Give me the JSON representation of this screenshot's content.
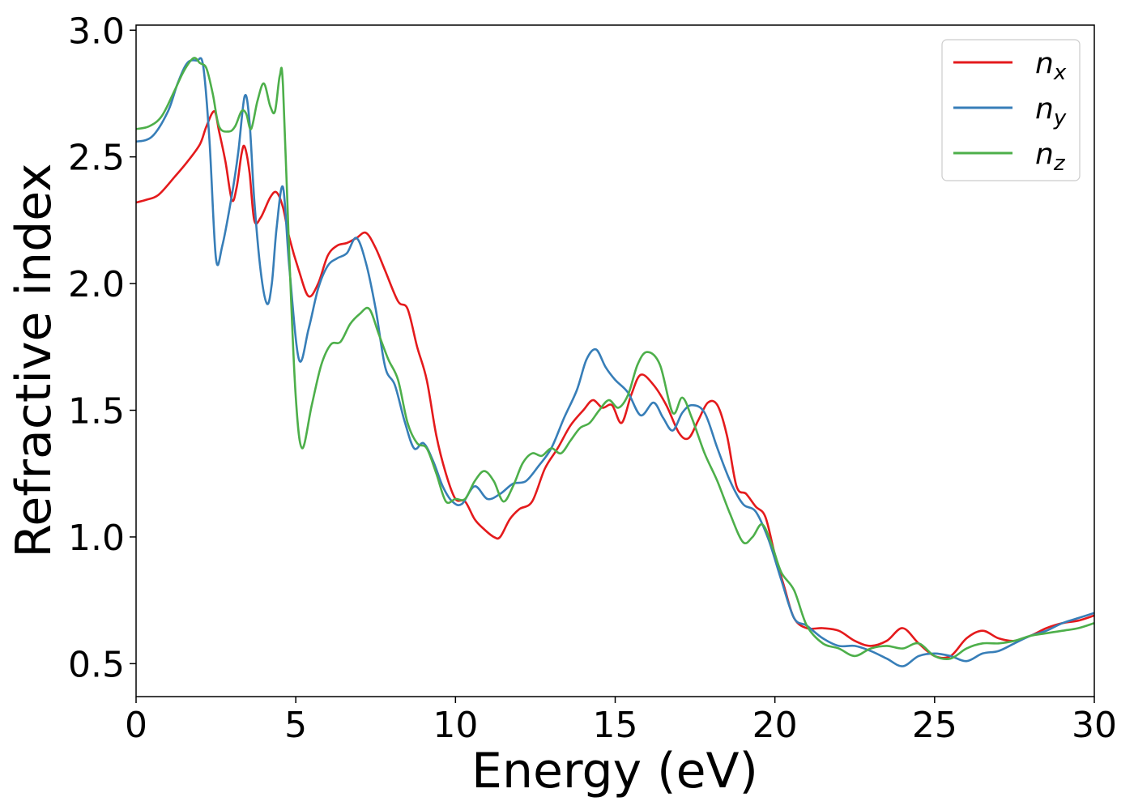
{
  "chart_data": {
    "type": "line",
    "title": "",
    "xlabel": "Energy (eV)",
    "ylabel": "Refractive index",
    "xlim": [
      0,
      30
    ],
    "ylim": [
      0.37,
      3.02
    ],
    "xticks": [
      0,
      5,
      10,
      15,
      20,
      25,
      30
    ],
    "xtick_labels": [
      "0",
      "5",
      "10",
      "15",
      "20",
      "25",
      "30"
    ],
    "yticks": [
      0.5,
      1.0,
      1.5,
      2.0,
      2.5,
      3.0
    ],
    "ytick_labels": [
      "0.5",
      "1.0",
      "1.5",
      "2.0",
      "2.5",
      "3.0"
    ],
    "grid": false,
    "legend_position": "top-right",
    "series": [
      {
        "name": "n",
        "subscript": "x",
        "color": "#e41a1c",
        "x": [
          0,
          0.3,
          0.7,
          1.2,
          1.6,
          2.0,
          2.2,
          2.45,
          2.6,
          2.8,
          3.0,
          3.15,
          3.3,
          3.4,
          3.55,
          3.7,
          3.9,
          4.2,
          4.4,
          4.6,
          4.8,
          5.1,
          5.4,
          5.7,
          6.0,
          6.3,
          6.6,
          6.9,
          7.2,
          7.5,
          7.8,
          8.2,
          8.5,
          8.8,
          9.1,
          9.4,
          9.7,
          10.0,
          10.3,
          10.6,
          10.9,
          11.2,
          11.4,
          11.7,
          12.0,
          12.4,
          12.8,
          13.2,
          13.6,
          14.0,
          14.3,
          14.6,
          14.9,
          15.2,
          15.5,
          15.8,
          16.2,
          16.6,
          17.0,
          17.3,
          17.6,
          17.9,
          18.2,
          18.5,
          18.8,
          19.1,
          19.4,
          19.7,
          20.0,
          20.3,
          20.6,
          21.0,
          21.5,
          22.0,
          22.5,
          23.0,
          23.5,
          24.0,
          24.5,
          25.0,
          25.5,
          26.0,
          26.5,
          27.0,
          27.5,
          28.0,
          28.5,
          29.0,
          29.5,
          30.0
        ],
        "y": [
          2.32,
          2.33,
          2.35,
          2.42,
          2.48,
          2.55,
          2.62,
          2.68,
          2.6,
          2.48,
          2.33,
          2.38,
          2.51,
          2.54,
          2.44,
          2.25,
          2.26,
          2.34,
          2.36,
          2.3,
          2.18,
          2.05,
          1.95,
          2.0,
          2.11,
          2.15,
          2.16,
          2.18,
          2.2,
          2.14,
          2.05,
          1.93,
          1.9,
          1.75,
          1.62,
          1.4,
          1.25,
          1.15,
          1.14,
          1.07,
          1.03,
          1.0,
          1.0,
          1.07,
          1.11,
          1.14,
          1.27,
          1.35,
          1.44,
          1.5,
          1.54,
          1.51,
          1.52,
          1.45,
          1.56,
          1.64,
          1.6,
          1.52,
          1.41,
          1.39,
          1.46,
          1.53,
          1.52,
          1.4,
          1.2,
          1.17,
          1.12,
          1.08,
          0.93,
          0.8,
          0.68,
          0.64,
          0.64,
          0.63,
          0.59,
          0.57,
          0.59,
          0.64,
          0.58,
          0.53,
          0.53,
          0.6,
          0.63,
          0.6,
          0.59,
          0.61,
          0.64,
          0.66,
          0.67,
          0.69
        ]
      },
      {
        "name": "n",
        "subscript": "y",
        "color": "#377eb8",
        "x": [
          0,
          0.5,
          1.0,
          1.3,
          1.6,
          1.9,
          2.1,
          2.3,
          2.5,
          2.7,
          3.0,
          3.2,
          3.4,
          3.55,
          3.7,
          3.9,
          4.1,
          4.25,
          4.4,
          4.6,
          4.8,
          5.1,
          5.4,
          5.7,
          6.0,
          6.3,
          6.6,
          6.9,
          7.2,
          7.5,
          7.8,
          8.1,
          8.4,
          8.7,
          9.0,
          9.3,
          9.6,
          9.9,
          10.2,
          10.6,
          11.0,
          11.4,
          11.8,
          12.2,
          12.6,
          13.0,
          13.4,
          13.8,
          14.1,
          14.4,
          14.7,
          15.0,
          15.4,
          15.8,
          16.2,
          16.5,
          16.8,
          17.1,
          17.4,
          17.8,
          18.2,
          18.6,
          19.0,
          19.4,
          19.8,
          20.2,
          20.6,
          21.0,
          21.5,
          22.0,
          22.5,
          23.0,
          23.5,
          24.0,
          24.5,
          25.0,
          25.5,
          26.0,
          26.5,
          27.0,
          27.5,
          28.0,
          28.5,
          29.0,
          29.5,
          30.0
        ],
        "y": [
          2.56,
          2.58,
          2.68,
          2.79,
          2.87,
          2.88,
          2.86,
          2.56,
          2.1,
          2.15,
          2.35,
          2.52,
          2.74,
          2.64,
          2.33,
          2.05,
          1.92,
          2.0,
          2.22,
          2.38,
          2.06,
          1.7,
          1.82,
          1.98,
          2.07,
          2.1,
          2.12,
          2.18,
          2.08,
          1.9,
          1.67,
          1.6,
          1.46,
          1.35,
          1.37,
          1.3,
          1.2,
          1.14,
          1.13,
          1.2,
          1.15,
          1.17,
          1.21,
          1.22,
          1.28,
          1.35,
          1.47,
          1.58,
          1.7,
          1.74,
          1.67,
          1.62,
          1.57,
          1.48,
          1.53,
          1.47,
          1.42,
          1.49,
          1.52,
          1.49,
          1.35,
          1.22,
          1.13,
          1.1,
          0.99,
          0.83,
          0.68,
          0.65,
          0.6,
          0.57,
          0.57,
          0.55,
          0.52,
          0.49,
          0.53,
          0.54,
          0.53,
          0.51,
          0.54,
          0.55,
          0.58,
          0.61,
          0.63,
          0.66,
          0.68,
          0.7
        ]
      },
      {
        "name": "n",
        "subscript": "z",
        "color": "#4daf4a",
        "x": [
          0,
          0.4,
          0.8,
          1.2,
          1.5,
          1.8,
          2.0,
          2.2,
          2.4,
          2.6,
          2.9,
          3.1,
          3.3,
          3.45,
          3.6,
          3.8,
          4.0,
          4.2,
          4.35,
          4.5,
          4.6,
          4.8,
          5.0,
          5.2,
          5.5,
          5.8,
          6.1,
          6.4,
          6.7,
          7.0,
          7.3,
          7.6,
          7.9,
          8.2,
          8.5,
          8.8,
          9.1,
          9.4,
          9.7,
          10.0,
          10.3,
          10.6,
          10.9,
          11.2,
          11.5,
          11.8,
          12.1,
          12.4,
          12.7,
          13.0,
          13.3,
          13.6,
          13.9,
          14.2,
          14.5,
          14.8,
          15.1,
          15.4,
          15.7,
          16.0,
          16.4,
          16.8,
          17.1,
          17.4,
          17.8,
          18.2,
          18.6,
          19.0,
          19.3,
          19.6,
          19.9,
          20.2,
          20.6,
          21.0,
          21.5,
          22.0,
          22.5,
          23.0,
          23.5,
          24.0,
          24.5,
          25.0,
          25.5,
          26.0,
          26.5,
          27.0,
          27.5,
          28.0,
          28.5,
          29.0,
          29.5,
          30.0
        ],
        "y": [
          2.61,
          2.62,
          2.66,
          2.76,
          2.84,
          2.89,
          2.87,
          2.85,
          2.75,
          2.62,
          2.6,
          2.62,
          2.68,
          2.67,
          2.61,
          2.72,
          2.79,
          2.7,
          2.68,
          2.82,
          2.78,
          2.1,
          1.55,
          1.35,
          1.52,
          1.68,
          1.76,
          1.77,
          1.84,
          1.88,
          1.9,
          1.8,
          1.7,
          1.62,
          1.45,
          1.37,
          1.35,
          1.25,
          1.14,
          1.15,
          1.15,
          1.22,
          1.26,
          1.22,
          1.14,
          1.2,
          1.29,
          1.33,
          1.32,
          1.35,
          1.33,
          1.38,
          1.43,
          1.45,
          1.5,
          1.54,
          1.51,
          1.56,
          1.68,
          1.73,
          1.68,
          1.49,
          1.55,
          1.47,
          1.33,
          1.22,
          1.09,
          0.98,
          1.0,
          1.05,
          0.97,
          0.86,
          0.79,
          0.65,
          0.58,
          0.56,
          0.53,
          0.56,
          0.57,
          0.56,
          0.58,
          0.53,
          0.52,
          0.56,
          0.58,
          0.58,
          0.59,
          0.61,
          0.62,
          0.63,
          0.64,
          0.66
        ]
      }
    ]
  }
}
